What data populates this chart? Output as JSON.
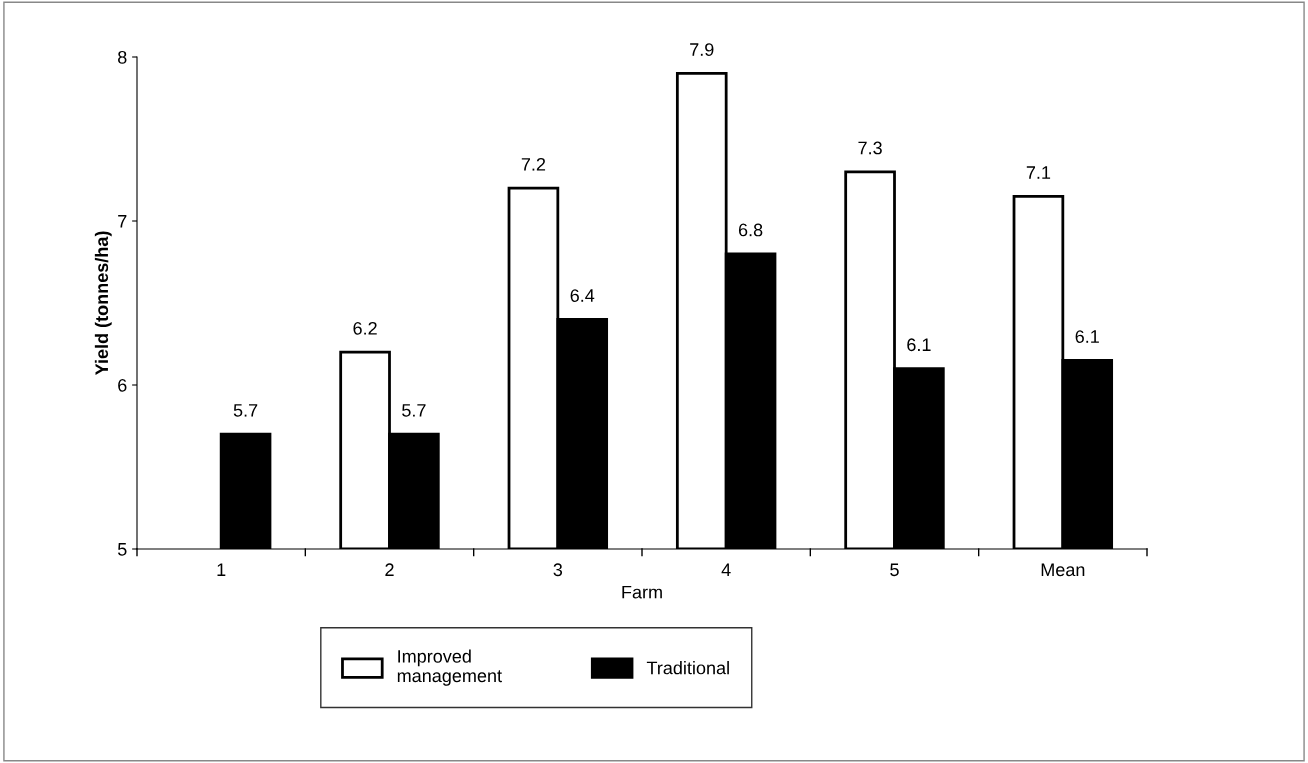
{
  "chart_data": {
    "type": "bar",
    "xlabel": "Farm",
    "ylabel": "Yield (tonnes/ha)",
    "categories": [
      "1",
      "2",
      "3",
      "4",
      "5",
      "Mean"
    ],
    "series": [
      {
        "name": "Improved management",
        "color": "#ffffff",
        "values": [
          null,
          6.2,
          7.2,
          7.9,
          7.3,
          7.15
        ],
        "value_labels": [
          null,
          "6.2",
          "7.2",
          "7.9",
          "7.3",
          "7.1"
        ]
      },
      {
        "name": "Traditional",
        "color": "#000000",
        "values": [
          5.7,
          5.7,
          6.4,
          6.8,
          6.1,
          6.15
        ],
        "value_labels": [
          "5.7",
          "5.7",
          "6.4",
          "6.8",
          "6.1",
          "6.1"
        ]
      }
    ],
    "ylim": [
      5,
      8
    ],
    "yticks": [
      5,
      6,
      7,
      8
    ],
    "grid": false,
    "legend": "bottom"
  }
}
